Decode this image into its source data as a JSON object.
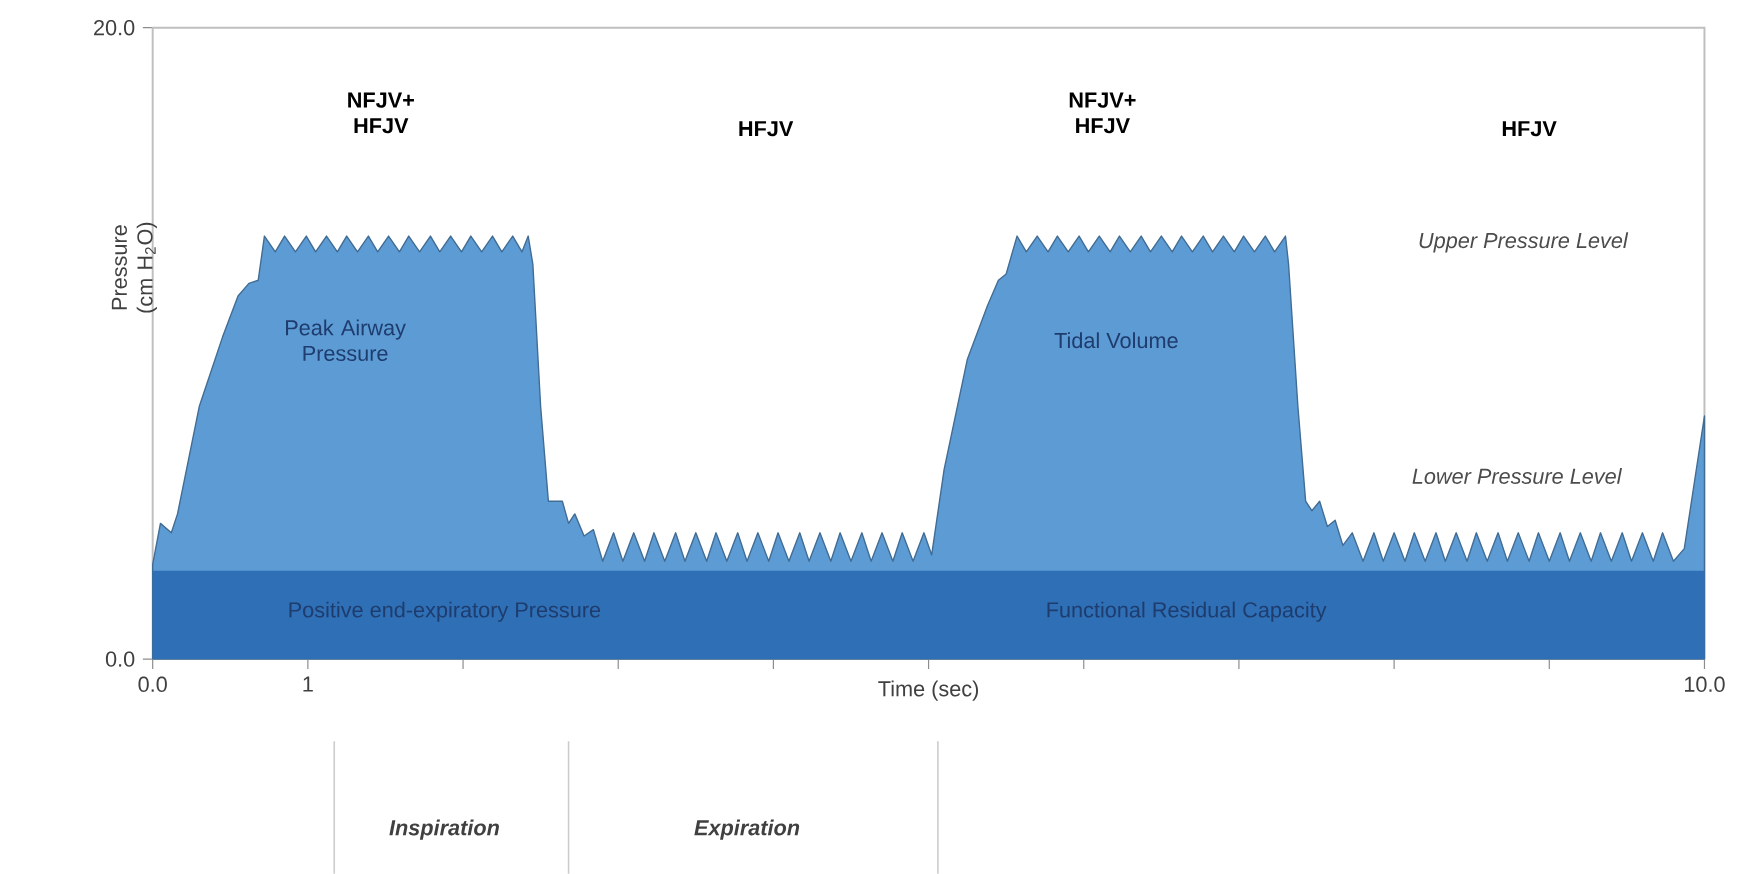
{
  "chart_data": {
    "type": "area",
    "xlabel": "Time (sec)",
    "ylabel": "Pressure (cm H$_{2}$O)",
    "xlim": [
      0,
      10
    ],
    "ylim": [
      0,
      20
    ],
    "xticks": [
      {
        "value": 0,
        "label": "0.0"
      },
      1,
      {
        "value": 2,
        "label": null
      },
      {
        "value": 3,
        "label": null
      },
      {
        "value": 4,
        "label": null
      },
      {
        "value": 5,
        "label": null
      },
      {
        "value": 6,
        "label": null
      },
      {
        "value": 7,
        "label": null
      },
      {
        "value": 8,
        "label": null
      },
      {
        "value": 9,
        "label": null
      },
      {
        "value": 10,
        "label": "10.0"
      }
    ],
    "yticks": [
      {
        "value": 0,
        "label": "0.0"
      },
      {
        "value": 20,
        "label": "20.0"
      }
    ],
    "series": [
      {
        "color": "#5d9bd4",
        "x": [
          0,
          0.05,
          0.12,
          0.16,
          0.3,
          0.45,
          0.55,
          0.62,
          0.68,
          0.72,
          0.79,
          0.85,
          0.92,
          0.99,
          1.05,
          1.12,
          1.19,
          1.25,
          1.32,
          1.39,
          1.45,
          1.52,
          1.59,
          1.65,
          1.72,
          1.79,
          1.85,
          1.92,
          1.99,
          2.05,
          2.12,
          2.19,
          2.25,
          2.32,
          2.38,
          2.42,
          2.45,
          2.5,
          2.55,
          2.64,
          2.68,
          2.72,
          2.78,
          2.84,
          2.9,
          2.97,
          3.03,
          3.1,
          3.17,
          3.23,
          3.3,
          3.37,
          3.43,
          3.5,
          3.57,
          3.63,
          3.7,
          3.77,
          3.83,
          3.9,
          3.97,
          4.03,
          4.1,
          4.17,
          4.23,
          4.3,
          4.37,
          4.43,
          4.5,
          4.57,
          4.63,
          4.7,
          4.77,
          4.83,
          4.9,
          4.97,
          5.02,
          5.1,
          5.25,
          5.38,
          5.45,
          5.5,
          5.57,
          5.63,
          5.7,
          5.77,
          5.83,
          5.9,
          5.97,
          6.03,
          6.1,
          6.17,
          6.23,
          6.3,
          6.37,
          6.43,
          6.5,
          6.57,
          6.63,
          6.7,
          6.77,
          6.83,
          6.9,
          6.97,
          7.03,
          7.1,
          7.17,
          7.23,
          7.3,
          7.32,
          7.38,
          7.43,
          7.47,
          7.52,
          7.57,
          7.62,
          7.67,
          7.73,
          7.8,
          7.87,
          7.93,
          8.0,
          8.07,
          8.13,
          8.2,
          8.27,
          8.33,
          8.4,
          8.47,
          8.53,
          8.6,
          8.67,
          8.73,
          8.8,
          8.87,
          8.93,
          9.0,
          9.07,
          9.13,
          9.2,
          9.27,
          9.33,
          9.4,
          9.47,
          9.53,
          9.6,
          9.67,
          9.73,
          9.8,
          9.87,
          10.0
        ],
        "values": [
          3.0,
          4.3,
          4.0,
          4.6,
          8.0,
          10.2,
          11.5,
          11.9,
          12.0,
          13.4,
          12.9,
          13.4,
          12.9,
          13.4,
          12.9,
          13.4,
          12.9,
          13.4,
          12.9,
          13.4,
          12.9,
          13.4,
          12.9,
          13.4,
          12.9,
          13.4,
          12.9,
          13.4,
          12.9,
          13.4,
          12.9,
          13.4,
          12.9,
          13.4,
          12.9,
          13.4,
          12.5,
          8.0,
          5.0,
          5.0,
          4.3,
          4.6,
          3.9,
          4.1,
          3.1,
          4.0,
          3.1,
          4.0,
          3.1,
          4.0,
          3.1,
          4.0,
          3.1,
          4.0,
          3.1,
          4.0,
          3.1,
          4.0,
          3.1,
          4.0,
          3.1,
          4.0,
          3.1,
          4.0,
          3.1,
          4.0,
          3.1,
          4.0,
          3.1,
          4.0,
          3.1,
          4.0,
          3.1,
          4.0,
          3.1,
          4.0,
          3.3,
          6.0,
          9.5,
          11.2,
          12.0,
          12.2,
          13.4,
          12.9,
          13.4,
          12.9,
          13.4,
          12.9,
          13.4,
          12.9,
          13.4,
          12.9,
          13.4,
          12.9,
          13.4,
          12.9,
          13.4,
          12.9,
          13.4,
          12.9,
          13.4,
          12.9,
          13.4,
          12.9,
          13.4,
          12.9,
          13.4,
          12.9,
          13.4,
          12.5,
          8.0,
          5.0,
          4.7,
          5.0,
          4.2,
          4.4,
          3.6,
          4.0,
          3.1,
          4.0,
          3.1,
          4.0,
          3.1,
          4.0,
          3.1,
          4.0,
          3.1,
          4.0,
          3.1,
          4.0,
          3.1,
          4.0,
          3.1,
          4.0,
          3.1,
          4.0,
          3.1,
          4.0,
          3.1,
          4.0,
          3.1,
          4.0,
          3.1,
          4.0,
          3.1,
          4.0,
          3.1,
          4.0,
          3.1,
          3.5,
          7.7
        ]
      },
      {
        "color": "#2e6fb5",
        "x": [
          0,
          10
        ],
        "values": [
          2.8,
          2.8
        ]
      }
    ],
    "annotations": [
      "NFJV+ HFJV",
      "HFJV",
      "NFJV+ HFJV",
      "HFJV",
      "Peak Airway Pressure",
      "Tidal Volume",
      "Upper Pressure Level",
      "Lower Pressure Level",
      "Positive end-expiratory Pressure",
      "Functional Residual Capacity",
      "Inspiration",
      "Expiration"
    ]
  }
}
